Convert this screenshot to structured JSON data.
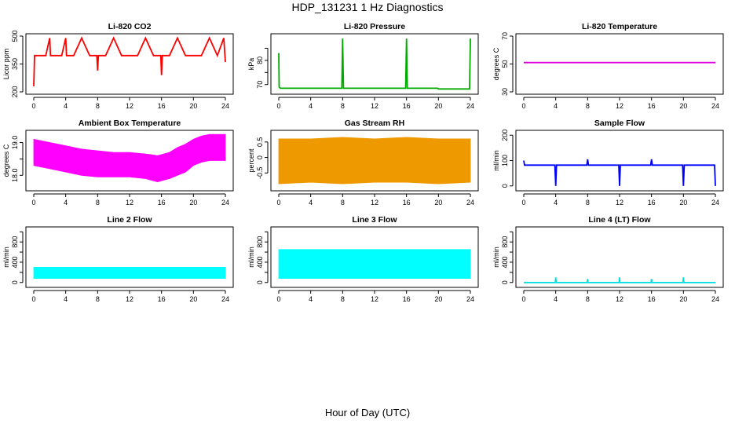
{
  "title": "HDP_131231 1 Hz Diagnostics",
  "xlabel": "Hour of Day (UTC)",
  "chart_data": [
    {
      "type": "line",
      "title": "Li-820 CO2",
      "ylabel": "Licor ppm",
      "color": "#ff0000",
      "xlim": [
        0,
        24
      ],
      "ylim": [
        200,
        500
      ],
      "xticks": [
        0,
        4,
        8,
        12,
        16,
        20,
        24
      ],
      "yticks": [
        200,
        350,
        500
      ],
      "ytick_labels": [
        "200",
        "350",
        "500"
      ],
      "series": [
        {
          "x": [
            0,
            0.1,
            0.2,
            1.0,
            1.5,
            2.0,
            2.1,
            3.0,
            3.5,
            4.0,
            4.1,
            5.0,
            6.0,
            7.0,
            7.5,
            7.9,
            8.0,
            8.1,
            9.0,
            10.0,
            11.0,
            12.0,
            13.0,
            14.0,
            15.0,
            15.9,
            16.0,
            16.1,
            17.0,
            18.0,
            19.0,
            20.0,
            21.0,
            22.0,
            23.0,
            23.8,
            24.0
          ],
          "y": [
            230,
            395,
            395,
            395,
            395,
            490,
            395,
            395,
            395,
            490,
            395,
            395,
            490,
            395,
            395,
            395,
            315,
            395,
            395,
            490,
            395,
            395,
            395,
            490,
            395,
            395,
            290,
            395,
            395,
            490,
            395,
            395,
            395,
            490,
            395,
            490,
            360
          ]
        }
      ]
    },
    {
      "type": "line",
      "title": "Li-820 Pressure",
      "ylabel": "kPa",
      "color": "#00aa00",
      "xlim": [
        0,
        24
      ],
      "ylim": [
        67,
        90
      ],
      "xticks": [
        0,
        4,
        8,
        12,
        16,
        20,
        24
      ],
      "yticks": [
        70,
        75,
        80,
        85
      ],
      "ytick_labels": [
        "70",
        "",
        "80",
        ""
      ],
      "series": [
        {
          "x": [
            0,
            0.05,
            0.2,
            7.9,
            8.0,
            8.1,
            15.9,
            16.0,
            16.1,
            19.9,
            20.0,
            23.9,
            24.0
          ],
          "y": [
            83,
            69,
            68.5,
            68.5,
            89,
            68.5,
            68.5,
            89,
            68.5,
            68.5,
            68.2,
            68.2,
            89
          ]
        }
      ]
    },
    {
      "type": "line",
      "title": "Li-820 Temperature",
      "ylabel": "degrees C",
      "color": "#dd00dd",
      "xlim": [
        0,
        24
      ],
      "ylim": [
        30,
        70
      ],
      "xticks": [
        0,
        4,
        8,
        12,
        16,
        20,
        24
      ],
      "yticks": [
        30,
        50,
        70
      ],
      "ytick_labels": [
        "30",
        "50",
        "70"
      ],
      "series": [
        {
          "x": [
            0,
            24
          ],
          "y": [
            51,
            51
          ]
        }
      ]
    },
    {
      "type": "area",
      "title": "Ambient Box Temperature",
      "ylabel": "degrees C",
      "color": "#ff00ff",
      "xlim": [
        0,
        24
      ],
      "ylim": [
        17.6,
        19.3
      ],
      "xticks": [
        0,
        4,
        8,
        12,
        16,
        20,
        24
      ],
      "yticks": [
        18.0,
        18.5,
        19.0
      ],
      "ytick_labels": [
        "18.0",
        "",
        "19.0"
      ],
      "series": [
        {
          "x": [
            0,
            2,
            4,
            6,
            8,
            10,
            12,
            14,
            15.5,
            17,
            18,
            19,
            20,
            21,
            22,
            24
          ],
          "upper": [
            19.1,
            19.0,
            18.9,
            18.8,
            18.75,
            18.7,
            18.7,
            18.65,
            18.6,
            18.7,
            18.85,
            18.95,
            19.1,
            19.2,
            19.25,
            19.25
          ],
          "lower": [
            18.3,
            18.2,
            18.1,
            18.0,
            17.95,
            17.95,
            17.95,
            17.9,
            17.8,
            17.9,
            18.0,
            18.1,
            18.3,
            18.4,
            18.45,
            18.45
          ]
        }
      ]
    },
    {
      "type": "area",
      "title": "Gas Stream RH",
      "ylabel": "percent",
      "color": "#ee9900",
      "xlim": [
        0,
        24
      ],
      "ylim": [
        -1.0,
        0.8
      ],
      "xticks": [
        0,
        4,
        8,
        12,
        16,
        20,
        24
      ],
      "yticks": [
        -0.5,
        0.0,
        0.5
      ],
      "ytick_labels": [
        "-0.5",
        "0",
        "0.5"
      ],
      "series": [
        {
          "x": [
            0,
            4,
            8,
            12,
            16,
            20,
            24
          ],
          "upper": [
            0.6,
            0.6,
            0.65,
            0.6,
            0.65,
            0.6,
            0.6
          ],
          "lower": [
            -0.85,
            -0.8,
            -0.85,
            -0.8,
            -0.8,
            -0.85,
            -0.8
          ]
        }
      ]
    },
    {
      "type": "line",
      "title": "Sample Flow",
      "ylabel": "ml/min",
      "color": "#0000ff",
      "xlim": [
        0,
        24
      ],
      "ylim": [
        -10,
        210
      ],
      "xticks": [
        0,
        4,
        8,
        12,
        16,
        20,
        24
      ],
      "yticks": [
        0,
        100,
        200
      ],
      "ytick_labels": [
        "0",
        "100",
        "200"
      ],
      "series": [
        {
          "x": [
            0,
            0.1,
            3.9,
            4.0,
            4.1,
            7.9,
            8.0,
            8.1,
            11.9,
            12.0,
            12.1,
            15.9,
            16.0,
            16.1,
            19.9,
            20.0,
            20.1,
            23.9,
            24.0
          ],
          "y": [
            100,
            82,
            82,
            0,
            82,
            82,
            105,
            82,
            82,
            0,
            82,
            82,
            105,
            82,
            82,
            0,
            82,
            82,
            0
          ]
        }
      ]
    },
    {
      "type": "area",
      "title": "Line 2 Flow",
      "ylabel": "ml/min",
      "color": "#00ffff",
      "xlim": [
        0,
        24
      ],
      "ylim": [
        -50,
        1050
      ],
      "xticks": [
        0,
        4,
        8,
        12,
        16,
        20,
        24
      ],
      "yticks": [
        0,
        200,
        400,
        600,
        800,
        1000
      ],
      "ytick_labels": [
        "0",
        "",
        "400",
        "",
        "800",
        ""
      ],
      "series": [
        {
          "x": [
            0,
            24
          ],
          "upper": [
            300,
            300
          ],
          "lower": [
            80,
            80
          ]
        }
      ]
    },
    {
      "type": "area",
      "title": "Line 3 Flow",
      "ylabel": "ml/min",
      "color": "#00ffff",
      "xlim": [
        0,
        24
      ],
      "ylim": [
        -50,
        1050
      ],
      "xticks": [
        0,
        4,
        8,
        12,
        16,
        20,
        24
      ],
      "yticks": [
        0,
        200,
        400,
        600,
        800,
        1000
      ],
      "ytick_labels": [
        "0",
        "",
        "400",
        "",
        "800",
        ""
      ],
      "series": [
        {
          "x": [
            0,
            24
          ],
          "upper": [
            650,
            650
          ],
          "lower": [
            80,
            80
          ]
        }
      ]
    },
    {
      "type": "line",
      "title": "Line 4 (LT) Flow",
      "ylabel": "ml/min",
      "color": "#00dddd",
      "xlim": [
        0,
        24
      ],
      "ylim": [
        -50,
        1050
      ],
      "xticks": [
        0,
        4,
        8,
        12,
        16,
        20,
        24
      ],
      "yticks": [
        0,
        200,
        400,
        600,
        800,
        1000
      ],
      "ytick_labels": [
        "0",
        "",
        "400",
        "",
        "800",
        ""
      ],
      "series": [
        {
          "x": [
            0,
            3.95,
            4.0,
            4.05,
            7.95,
            8.0,
            8.05,
            11.95,
            12.0,
            12.05,
            15.95,
            16.0,
            16.05,
            19.95,
            20.0,
            20.05,
            24
          ],
          "y": [
            0,
            0,
            100,
            0,
            0,
            70,
            0,
            0,
            100,
            0,
            0,
            70,
            0,
            0,
            100,
            0,
            0
          ]
        }
      ]
    }
  ]
}
